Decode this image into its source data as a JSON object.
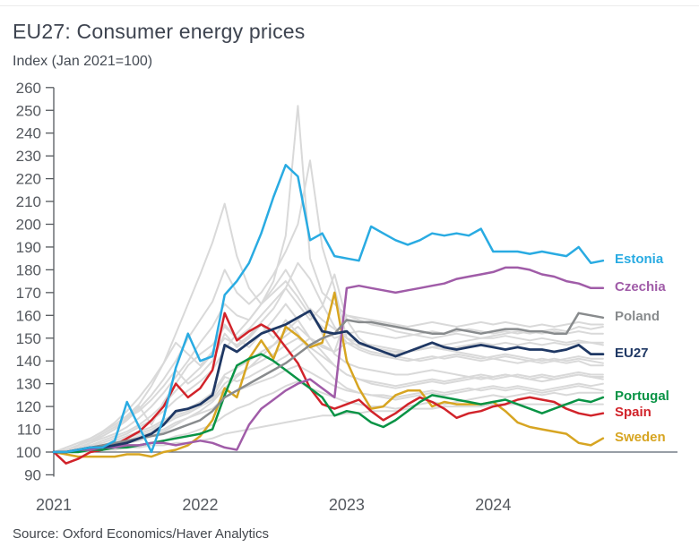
{
  "page": {
    "title": "EU27: Consumer energy prices",
    "subtitle": "Index (Jan 2021=100)",
    "source": "Source: Oxford Economics/Haver Analytics"
  },
  "colors": {
    "background": "#ffffff",
    "axis": "#55595e",
    "tick_text": "#55595f",
    "reference_line": "#5b6470",
    "background_lines": "#d9d9d9",
    "title_text": "#3e4450"
  },
  "chart_data": {
    "type": "line",
    "title": "EU27: Consumer energy prices",
    "ylabel": "Index (Jan 2021=100)",
    "xlabel": "",
    "grid": false,
    "legend_position": "right-of-line-ends",
    "x_unit": "month",
    "x_start": "Jan 2021",
    "x_end": "Oct 2024",
    "x_tick_labels": [
      "2021",
      "2022",
      "2023",
      "2024"
    ],
    "y_ticks": [
      260,
      250,
      240,
      230,
      220,
      210,
      200,
      190,
      180,
      170,
      160,
      150,
      140,
      130,
      120,
      110,
      100,
      90
    ],
    "ylim": [
      90,
      260
    ],
    "reference_line_y": 100,
    "series": [
      {
        "name": "Estonia",
        "color": "#29abe2",
        "values": [
          100,
          100,
          101,
          102,
          102,
          105,
          122,
          111,
          100,
          115,
          137,
          152,
          140,
          142,
          169,
          175,
          183,
          196,
          212,
          226,
          221,
          193,
          196,
          186,
          185,
          184,
          199,
          196,
          193,
          191,
          193,
          196,
          195,
          196,
          195,
          198,
          188,
          188,
          188,
          187,
          188,
          187,
          186,
          190,
          183,
          184
        ]
      },
      {
        "name": "Czechia",
        "color": "#a05ca8",
        "values": [
          100,
          100,
          101,
          101,
          102,
          102,
          103,
          103,
          104,
          104,
          103,
          104,
          105,
          104,
          102,
          101,
          112,
          119,
          123,
          127,
          130,
          132,
          128,
          124,
          172,
          173,
          172,
          171,
          170,
          171,
          172,
          173,
          174,
          176,
          177,
          178,
          179,
          181,
          181,
          180,
          178,
          177,
          175,
          174,
          172,
          172
        ]
      },
      {
        "name": "Poland",
        "color": "#888b8d",
        "values": [
          100,
          100,
          101,
          102,
          103,
          104,
          105,
          106,
          107,
          108,
          110,
          112,
          114,
          118,
          124,
          127,
          130,
          133,
          136,
          139,
          143,
          147,
          150,
          152,
          158,
          157,
          157,
          156,
          155,
          154,
          153,
          152,
          152,
          154,
          153,
          152,
          153,
          154,
          154,
          153,
          153,
          152,
          152,
          161,
          160,
          159
        ]
      },
      {
        "name": "EU27",
        "color": "#1f3864",
        "values": [
          100,
          100,
          101,
          102,
          102,
          103,
          104,
          106,
          108,
          112,
          118,
          119,
          121,
          125,
          147,
          144,
          148,
          152,
          154,
          156,
          159,
          162,
          153,
          152,
          153,
          148,
          146,
          144,
          142,
          144,
          146,
          148,
          146,
          145,
          146,
          147,
          146,
          145,
          146,
          145,
          145,
          144,
          145,
          147,
          143,
          143
        ]
      },
      {
        "name": "Portugal",
        "color": "#089345",
        "values": [
          100,
          100,
          100,
          101,
          101,
          102,
          102,
          103,
          104,
          105,
          106,
          107,
          108,
          110,
          125,
          138,
          141,
          143,
          140,
          136,
          132,
          128,
          124,
          116,
          118,
          117,
          113,
          111,
          114,
          118,
          122,
          125,
          124,
          123,
          122,
          121,
          122,
          123,
          121,
          119,
          117,
          119,
          121,
          123,
          122,
          124
        ]
      },
      {
        "name": "Spain",
        "color": "#d1232a",
        "values": [
          100,
          95,
          97,
          100,
          101,
          103,
          106,
          109,
          114,
          120,
          130,
          124,
          128,
          136,
          161,
          149,
          153,
          156,
          153,
          146,
          139,
          128,
          121,
          119,
          121,
          123,
          118,
          114,
          117,
          121,
          124,
          122,
          119,
          115,
          117,
          118,
          120,
          121,
          123,
          124,
          123,
          122,
          119,
          117,
          116,
          117
        ]
      },
      {
        "name": "Sweden",
        "color": "#d7a522",
        "values": [
          100,
          99,
          98,
          98,
          98,
          98,
          99,
          99,
          98,
          100,
          101,
          103,
          107,
          114,
          128,
          124,
          141,
          149,
          141,
          155,
          151,
          146,
          148,
          170,
          140,
          128,
          119,
          120,
          125,
          127,
          127,
          120,
          122,
          121,
          121,
          121,
          122,
          118,
          113,
          111,
          110,
          109,
          108,
          104,
          103,
          106
        ]
      }
    ],
    "background_series": {
      "color": "#d9d9d9",
      "values_sets": [
        [
          100,
          101,
          102,
          104,
          106,
          108,
          111,
          115,
          120,
          126,
          133,
          140,
          148,
          155,
          165,
          160,
          158,
          165,
          175,
          195,
          252,
          185,
          170,
          165,
          160,
          158,
          156,
          155,
          153,
          152,
          151,
          150,
          151,
          152,
          151,
          150,
          150,
          151,
          150,
          149,
          150,
          149,
          148,
          149,
          148,
          147
        ],
        [
          100,
          101,
          103,
          105,
          107,
          110,
          114,
          119,
          125,
          132,
          140,
          150,
          158,
          166,
          180,
          170,
          165,
          170,
          178,
          188,
          200,
          228,
          190,
          172,
          150,
          146,
          144,
          143,
          142,
          141,
          140,
          141,
          142,
          143,
          142,
          141,
          142,
          143,
          142,
          141,
          140,
          141,
          140,
          141,
          140,
          139
        ],
        [
          100,
          102,
          104,
          106,
          109,
          112,
          116,
          121,
          129,
          139,
          152,
          165,
          178,
          192,
          209,
          186,
          172,
          165,
          172,
          180,
          171,
          162,
          152,
          143,
          139,
          137,
          136,
          135,
          134,
          134,
          135,
          136,
          135,
          134,
          133,
          132,
          133,
          134,
          133,
          132,
          131,
          132,
          133,
          134,
          133,
          132
        ],
        [
          100,
          100,
          101,
          101,
          102,
          103,
          104,
          105,
          107,
          109,
          112,
          115,
          118,
          122,
          128,
          133,
          137,
          142,
          147,
          153,
          158,
          163,
          158,
          154,
          150,
          148,
          147,
          146,
          145,
          144,
          145,
          146,
          147,
          148,
          149,
          150,
          151,
          152,
          153,
          152,
          153,
          154,
          153,
          155,
          154,
          155
        ],
        [
          100,
          101,
          103,
          105,
          108,
          111,
          115,
          118,
          123,
          129,
          136,
          130,
          134,
          140,
          152,
          146,
          150,
          156,
          150,
          158,
          152,
          144,
          138,
          132,
          128,
          126,
          125,
          124,
          123,
          124,
          125,
          126,
          125,
          126,
          127,
          128,
          129,
          128,
          129,
          128,
          127,
          128,
          129,
          130,
          129,
          130
        ],
        [
          100,
          100,
          101,
          102,
          103,
          104,
          106,
          108,
          110,
          113,
          116,
          118,
          121,
          124,
          133,
          131,
          133,
          136,
          139,
          142,
          146,
          150,
          146,
          144,
          148,
          147,
          146,
          145,
          144,
          144,
          145,
          146,
          145,
          146,
          147,
          148,
          147,
          148,
          147,
          148,
          147,
          148,
          147,
          148,
          148,
          148
        ],
        [
          100,
          100,
          100,
          101,
          101,
          101,
          102,
          102,
          103,
          103,
          104,
          104,
          105,
          106,
          108,
          109,
          110,
          111,
          112,
          113,
          114,
          115,
          116,
          116,
          117,
          117,
          118,
          118,
          118,
          119,
          119,
          119,
          120,
          120,
          120,
          120,
          121,
          121,
          121,
          121,
          121,
          121,
          121,
          121,
          121,
          121
        ],
        [
          100,
          100,
          101,
          102,
          103,
          104,
          105,
          107,
          109,
          112,
          115,
          117,
          120,
          123,
          130,
          134,
          137,
          140,
          143,
          147,
          150,
          146,
          142,
          138,
          134,
          132,
          130,
          129,
          128,
          129,
          130,
          131,
          130,
          131,
          132,
          133,
          132,
          133,
          134,
          133,
          134,
          133,
          134,
          135,
          134,
          134
        ],
        [
          100,
          101,
          102,
          103,
          105,
          107,
          109,
          112,
          116,
          121,
          127,
          132,
          137,
          143,
          150,
          147,
          151,
          157,
          163,
          172,
          183,
          176,
          165,
          155,
          148,
          145,
          143,
          142,
          141,
          140,
          141,
          142,
          141,
          142,
          141,
          140,
          141,
          142,
          141,
          140,
          141,
          140,
          141,
          142,
          141,
          141
        ],
        [
          100,
          100,
          101,
          101,
          102,
          103,
          104,
          106,
          108,
          110,
          113,
          115,
          117,
          119,
          124,
          127,
          129,
          131,
          133,
          136,
          138,
          135,
          132,
          129,
          127,
          126,
          125,
          125,
          124,
          125,
          126,
          127,
          126,
          127,
          128,
          127,
          128,
          127,
          128,
          127,
          126,
          127,
          128,
          129,
          128,
          127
        ],
        [
          100,
          101,
          102,
          104,
          107,
          110,
          115,
          120,
          112,
          122,
          130,
          138,
          143,
          147,
          155,
          150,
          154,
          160,
          166,
          172,
          165,
          158,
          164,
          178,
          158,
          150,
          146,
          144,
          143,
          144,
          145,
          146,
          145,
          144,
          143,
          142,
          141,
          140,
          139,
          140,
          139,
          140,
          139,
          140,
          138,
          138
        ],
        [
          100,
          101,
          102,
          103,
          104,
          106,
          108,
          111,
          114,
          118,
          123,
          127,
          131,
          136,
          145,
          152,
          158,
          165,
          170,
          175,
          168,
          160,
          155,
          150,
          152,
          153,
          152,
          151,
          150,
          151,
          152,
          153,
          152,
          153,
          154,
          153,
          152,
          153,
          152,
          153,
          152,
          153,
          152,
          153,
          152,
          152
        ],
        [
          100,
          100,
          100,
          100,
          101,
          101,
          102,
          103,
          104,
          105,
          107,
          108,
          110,
          112,
          116,
          119,
          121,
          124,
          126,
          129,
          131,
          128,
          126,
          124,
          122,
          121,
          120,
          120,
          119,
          120,
          121,
          122,
          121,
          122,
          123,
          124,
          125,
          124,
          125,
          126,
          125,
          126,
          125,
          126,
          126,
          126
        ],
        [
          100,
          100,
          101,
          102,
          103,
          105,
          107,
          109,
          111,
          114,
          117,
          119,
          122,
          126,
          134,
          137,
          140,
          144,
          147,
          151,
          155,
          150,
          147,
          144,
          160,
          159,
          158,
          157,
          156,
          155,
          156,
          157,
          156,
          155,
          156,
          157,
          156,
          157,
          156,
          155,
          156,
          155,
          156,
          157,
          156,
          156
        ],
        [
          100,
          101,
          103,
          106,
          109,
          113,
          118,
          124,
          131,
          139,
          148,
          143,
          138,
          144,
          156,
          150,
          146,
          152,
          158,
          165,
          158,
          150,
          144,
          138,
          134,
          132,
          131,
          130,
          129,
          130,
          131,
          132,
          131,
          132,
          133,
          134,
          133,
          134,
          133,
          132,
          133,
          132,
          133,
          134,
          133,
          133
        ]
      ]
    },
    "source": "Source: Oxford Economics/Haver Analytics"
  }
}
